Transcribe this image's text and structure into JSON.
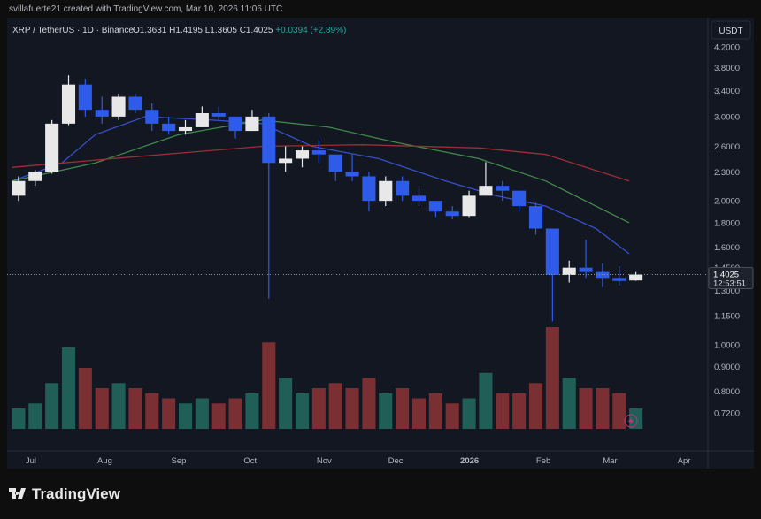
{
  "header": {
    "attribution": "svillafuerte21 created with TradingView.com, Mar 10, 2026 11:06 UTC",
    "symbol": "XRP / TetherUS · 1D · Binance",
    "open": "O1.3631",
    "high": "H1.4195",
    "low": "L1.3605",
    "close": "C1.4025",
    "change": "+0.0394 (+2.89%)",
    "currency": "USDT",
    "brand": "TradingView"
  },
  "chart_data": {
    "type": "candlestick",
    "log_scale": true,
    "grid": true,
    "up_color": "#e8e8e8",
    "down_color": "#2f5bea",
    "volume_up_color": "#1f5f57",
    "volume_down_color": "#7a2f33",
    "xlim": [
      "2025-06-21",
      "2026-04-11"
    ],
    "xticks": [
      {
        "value": "2025-07-01",
        "label": "Jul"
      },
      {
        "value": "2025-08-01",
        "label": "Aug"
      },
      {
        "value": "2025-09-01",
        "label": "Sep"
      },
      {
        "value": "2025-10-01",
        "label": "Oct"
      },
      {
        "value": "2025-11-01",
        "label": "Nov"
      },
      {
        "value": "2025-12-01",
        "label": "Dec"
      },
      {
        "value": "2026-01-01",
        "label": "2026"
      },
      {
        "value": "2026-02-01",
        "label": "Feb"
      },
      {
        "value": "2026-03-01",
        "label": "Mar"
      },
      {
        "value": "2026-04-01",
        "label": "Apr"
      }
    ],
    "ylim": [
      0.6,
      4.83
    ],
    "yticks": [
      {
        "value": 4.2,
        "label": "4.2000"
      },
      {
        "value": 3.8,
        "label": "3.8000"
      },
      {
        "value": 3.4,
        "label": "3.4000"
      },
      {
        "value": 3.0,
        "label": "3.0000"
      },
      {
        "value": 2.6,
        "label": "2.6000"
      },
      {
        "value": 2.3,
        "label": "2.3000"
      },
      {
        "value": 2.0,
        "label": "2.0000"
      },
      {
        "value": 1.8,
        "label": "1.8000"
      },
      {
        "value": 1.6,
        "label": "1.6000"
      },
      {
        "value": 1.45,
        "label": "1.4500"
      },
      {
        "value": 1.3,
        "label": "1.3000"
      },
      {
        "value": 1.15,
        "label": "1.1500"
      },
      {
        "value": 1.0,
        "label": "1.0000"
      },
      {
        "value": 0.9,
        "label": "0.9000"
      },
      {
        "value": 0.8,
        "label": "0.8000"
      },
      {
        "value": 0.72,
        "label": "0.7200"
      }
    ],
    "volume_lim": [
      0,
      100
    ],
    "x": [
      "2025-06-23",
      "2025-06-30",
      "2025-07-07",
      "2025-07-14",
      "2025-07-21",
      "2025-07-28",
      "2025-08-04",
      "2025-08-11",
      "2025-08-18",
      "2025-08-25",
      "2025-09-01",
      "2025-09-08",
      "2025-09-15",
      "2025-09-22",
      "2025-09-29",
      "2025-10-06",
      "2025-10-13",
      "2025-10-20",
      "2025-10-27",
      "2025-11-03",
      "2025-11-10",
      "2025-11-17",
      "2025-11-24",
      "2025-12-01",
      "2025-12-08",
      "2025-12-15",
      "2025-12-22",
      "2025-12-29",
      "2026-01-05",
      "2026-01-12",
      "2026-01-19",
      "2026-01-26",
      "2026-02-02",
      "2026-02-09",
      "2026-02-16",
      "2026-02-23",
      "2026-03-02",
      "2026-03-09"
    ],
    "open": [
      2.05,
      2.2,
      2.3,
      2.9,
      3.5,
      3.1,
      3.0,
      3.3,
      3.1,
      2.9,
      2.8,
      2.85,
      3.05,
      3.0,
      2.8,
      3.0,
      2.4,
      2.45,
      2.55,
      2.5,
      2.3,
      2.25,
      2.0,
      2.2,
      2.05,
      2.0,
      1.9,
      1.86,
      2.05,
      2.15,
      2.1,
      1.95,
      1.75,
      1.4,
      1.45,
      1.42,
      1.38,
      1.3631
    ],
    "high": [
      2.25,
      2.32,
      2.95,
      3.66,
      3.6,
      3.3,
      3.35,
      3.35,
      3.2,
      3.0,
      2.95,
      3.15,
      3.15,
      3.0,
      3.1,
      3.05,
      2.6,
      2.6,
      2.68,
      2.5,
      2.5,
      2.3,
      2.25,
      2.25,
      2.15,
      2.0,
      1.95,
      2.1,
      2.41,
      2.2,
      2.1,
      1.98,
      1.75,
      1.5,
      1.66,
      1.48,
      1.46,
      1.4195
    ],
    "low": [
      2.0,
      2.15,
      2.28,
      2.88,
      3.0,
      2.9,
      2.95,
      3.05,
      2.8,
      2.75,
      2.75,
      2.85,
      2.95,
      2.7,
      2.8,
      1.25,
      2.3,
      2.35,
      2.4,
      2.2,
      2.2,
      1.9,
      1.95,
      2.0,
      1.95,
      1.85,
      1.83,
      1.85,
      2.05,
      2.0,
      1.9,
      1.7,
      1.12,
      1.35,
      1.38,
      1.32,
      1.33,
      1.3605
    ],
    "close": [
      2.2,
      2.3,
      2.9,
      3.5,
      3.1,
      3.0,
      3.3,
      3.1,
      2.9,
      2.8,
      2.85,
      3.05,
      3.0,
      2.8,
      3.0,
      2.4,
      2.45,
      2.55,
      2.5,
      2.3,
      2.25,
      2.0,
      2.2,
      2.05,
      2.0,
      1.9,
      1.86,
      2.05,
      2.15,
      2.1,
      1.95,
      1.75,
      1.4,
      1.45,
      1.42,
      1.38,
      1.36,
      1.4025
    ],
    "volume": [
      20,
      25,
      45,
      80,
      60,
      40,
      45,
      40,
      35,
      30,
      25,
      30,
      25,
      30,
      35,
      85,
      50,
      35,
      40,
      45,
      40,
      50,
      35,
      40,
      30,
      35,
      25,
      30,
      55,
      35,
      35,
      45,
      100,
      50,
      40,
      40,
      35,
      20
    ],
    "ma": [
      {
        "color": "#3550c8",
        "x": [
          "2025-06-23",
          "2025-07-14",
          "2025-07-28",
          "2025-08-18",
          "2025-09-15",
          "2025-10-06",
          "2025-10-27",
          "2025-11-24",
          "2025-12-22",
          "2026-01-12",
          "2026-02-02",
          "2026-02-23",
          "2026-03-09"
        ],
        "values": [
          2.2,
          2.4,
          2.75,
          3.0,
          2.95,
          2.9,
          2.6,
          2.45,
          2.2,
          2.05,
          1.95,
          1.75,
          1.55
        ]
      },
      {
        "color": "#3f8a4a",
        "x": [
          "2025-06-23",
          "2025-07-28",
          "2025-09-01",
          "2025-10-06",
          "2025-11-03",
          "2025-12-01",
          "2026-01-05",
          "2026-02-02",
          "2026-03-09"
        ],
        "values": [
          2.2,
          2.4,
          2.75,
          2.95,
          2.85,
          2.65,
          2.45,
          2.2,
          1.8
        ]
      },
      {
        "color": "#9c2f34",
        "x": [
          "2025-06-23",
          "2025-08-04",
          "2025-10-06",
          "2025-11-17",
          "2026-01-05",
          "2026-02-02",
          "2026-03-09"
        ],
        "values": [
          2.35,
          2.45,
          2.6,
          2.62,
          2.58,
          2.5,
          2.2
        ]
      }
    ],
    "last_price": {
      "value": 1.4025,
      "countdown": "12:53:51"
    }
  }
}
